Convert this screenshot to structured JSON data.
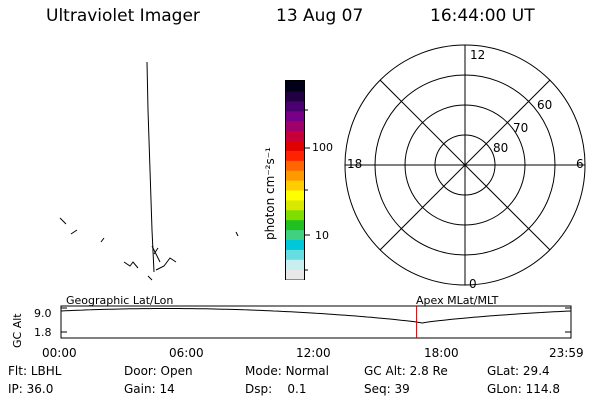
{
  "header": {
    "instrument": "Ultraviolet Imager",
    "date": "13 Aug 07",
    "time": "16:44:00 UT"
  },
  "colorbar": {
    "unit_label": "photon cm⁻²s⁻¹",
    "ticks": [
      "100",
      "10"
    ],
    "colors": [
      "#e8e8e8",
      "#c8eef0",
      "#66dde0",
      "#00c8d8",
      "#40d080",
      "#20c020",
      "#80dd00",
      "#d8e800",
      "#ffff00",
      "#ffcc00",
      "#ff9900",
      "#ff6600",
      "#ff2200",
      "#e00000",
      "#c8003a",
      "#a0006a",
      "#780088",
      "#4a0070",
      "#200040",
      "#000018"
    ]
  },
  "polar": {
    "mlt_labels": [
      "12",
      "18",
      "6",
      "0"
    ],
    "lat_labels": [
      "60",
      "70",
      "80"
    ]
  },
  "orbit": {
    "y_axis_label": "GC Alt",
    "y_ticks": [
      "9.0",
      "1.8"
    ],
    "left_caption": "Geographic Lat/Lon",
    "right_caption": "Apex MLat/MLT",
    "time_ticks": [
      "00:00",
      "06:00",
      "12:00",
      "18:00",
      "23:59"
    ],
    "current_time_marker_hours": 16.733,
    "marker_color": "#cc0000"
  },
  "status": {
    "row1": [
      {
        "label": "Flt:",
        "value": "LBHL"
      },
      {
        "label": "Door:",
        "value": "Open"
      },
      {
        "label": "Mode:",
        "value": "Normal"
      },
      {
        "label": "GC Alt:",
        "value": "2.8 Re"
      },
      {
        "label": "GLat:",
        "value": "29.4"
      }
    ],
    "row2": [
      {
        "label": "IP:",
        "value": "36.0"
      },
      {
        "label": "Gain:",
        "value": "14"
      },
      {
        "label": "Dsp:",
        "value": "0.1"
      },
      {
        "label": "Seq:",
        "value": "39"
      },
      {
        "label": "GLon:",
        "value": "114.8"
      }
    ]
  }
}
